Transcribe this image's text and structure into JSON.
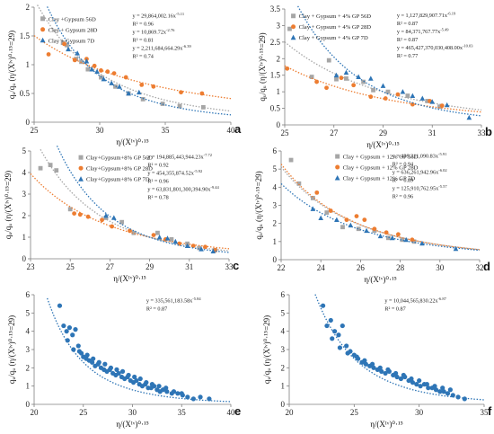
{
  "colors": {
    "grey": "#a6a6a6",
    "orange": "#ed7d31",
    "blue": "#2e75b6",
    "axis": "#7f7f7f",
    "text": "#222222"
  },
  "chart_data": [
    {
      "panel": "a",
      "type": "scatter",
      "xlabel": "η/(Xᴵᵛ)⁰·¹⁵",
      "ylabel": "qᵤ/qᵤ (η/(Xᴵᵛ)⁰·¹⁵=29)",
      "xlim": [
        25,
        40
      ],
      "ylim": [
        0,
        2
      ],
      "xticks": [
        25,
        30,
        35,
        40
      ],
      "yticks": [
        0,
        0.5,
        1,
        1.5,
        2
      ],
      "legend": "top-left",
      "series": [
        {
          "name": "Clay +Gypsum 56D",
          "color": "#a6a6a6",
          "marker": "square",
          "fit": {
            "a": 29864002.16,
            "b": -5.11
          },
          "x": [
            27.2,
            27.5,
            28.2,
            28.6,
            29.1,
            30.1,
            31.2,
            32.2,
            33.3,
            34.8,
            36.1,
            37.9
          ],
          "y": [
            1.38,
            1.34,
            1.1,
            1.05,
            0.92,
            0.78,
            0.62,
            0.5,
            0.4,
            0.32,
            0.28,
            0.26
          ]
        },
        {
          "name": "Clay + Gypsum 28D",
          "color": "#ed7d31",
          "marker": "circle",
          "fit": {
            "a": 10869.72,
            "b": -2.76
          },
          "x": [
            26.1,
            27.3,
            28.1,
            29.0,
            29.6,
            30.1,
            30.6,
            31.1,
            32.0,
            33.2,
            34.1,
            36.2,
            37.8
          ],
          "y": [
            1.18,
            1.36,
            1.08,
            1.1,
            0.98,
            0.9,
            0.88,
            0.85,
            0.78,
            0.65,
            0.62,
            0.52,
            0.5
          ]
        },
        {
          "name": "Clay + Gypsum 7D",
          "color": "#2e75b6",
          "marker": "triangle",
          "fit": {
            "a": 2211684664.29,
            "b": -6.39
          },
          "x": [
            27.6,
            28.3,
            29.0,
            29.4,
            29.8,
            30.3,
            30.9,
            31.5,
            32.2,
            33.0
          ],
          "y": [
            1.27,
            1.2,
            1.06,
            0.92,
            0.88,
            0.75,
            0.68,
            0.62,
            0.5,
            0.52
          ]
        }
      ],
      "equations": [
        [
          "y = 29,864,002.16x",
          "-5.11"
        ],
        [
          "R² = 0.96",
          ""
        ],
        [
          "y = 10,869.72x",
          "-2.76"
        ],
        [
          "R² = 0.81",
          ""
        ],
        [
          "y = 2,211,684,664.29x",
          "-6.39"
        ],
        [
          "R² = 0.74",
          ""
        ]
      ]
    },
    {
      "panel": "b",
      "type": "scatter",
      "xlabel": "η/(Xᴵᵛ)⁰·¹⁵",
      "ylabel": "qᵤ/qᵤ (η/(Xᴵᵛ)⁰·¹⁵=29)",
      "xlim": [
        25,
        33
      ],
      "ylim": [
        0,
        3.5
      ],
      "xticks": [
        25,
        27,
        29,
        31,
        33
      ],
      "yticks": [
        0,
        0.5,
        1,
        1.5,
        2,
        2.5,
        3,
        3.5
      ],
      "legend": "top-left",
      "series": [
        {
          "name": "Clay + Gypsum + 4% GP 56D",
          "color": "#a6a6a6",
          "marker": "square",
          "fit": {
            "a": 1127829907.71,
            "b": -6.19
          },
          "x": [
            25.2,
            26.1,
            26.8,
            27.1,
            27.5,
            28.2,
            28.6,
            29.2,
            30.0,
            30.8,
            31.3
          ],
          "y": [
            2.9,
            1.45,
            1.95,
            1.38,
            1.4,
            1.3,
            1.05,
            1.0,
            0.88,
            0.72,
            0.55
          ]
        },
        {
          "name": "Clay + Gypsum + 4% GP 28D",
          "color": "#ed7d31",
          "marker": "circle",
          "fit": {
            "a": 84371767.77,
            "b": -5.49
          },
          "x": [
            25.1,
            26.3,
            26.7,
            27.3,
            27.8,
            28.5,
            29.1,
            29.6,
            30.2,
            30.9,
            31.4
          ],
          "y": [
            1.7,
            1.3,
            1.12,
            1.42,
            1.2,
            0.85,
            0.8,
            0.92,
            0.62,
            0.72,
            0.58
          ]
        },
        {
          "name": "Clay + Gypsum + 4% GP 7D",
          "color": "#2e75b6",
          "marker": "triangle",
          "fit": {
            "a": 465427370030408,
            "b": -10.03
          },
          "x": [
            27.1,
            27.5,
            28.0,
            28.5,
            29.0,
            29.8,
            30.2,
            30.6,
            31.0,
            31.6,
            32.5
          ],
          "y": [
            1.5,
            1.58,
            1.45,
            1.4,
            1.18,
            1.0,
            0.88,
            0.8,
            0.7,
            0.6,
            0.22
          ]
        }
      ],
      "equations": [
        [
          "y = 1,127,829,907.71x",
          "-6.19"
        ],
        [
          "R² = 0.87",
          ""
        ],
        [
          "y = 84,371,767.77x",
          "-5.49"
        ],
        [
          "R² = 0.87",
          ""
        ],
        [
          "y = 465,427,370,030,408.00x",
          "-10.03"
        ],
        [
          "R² = 0.77",
          ""
        ]
      ]
    },
    {
      "panel": "c",
      "type": "scatter",
      "xlabel": "η/(Xᴵᵛ)⁰·¹⁵",
      "ylabel": "qᵤ/qᵤ (η/(Xᴵᵛ)⁰·¹⁵=29)",
      "xlim": [
        23,
        33
      ],
      "ylim": [
        0,
        5
      ],
      "xticks": [
        23,
        25,
        27,
        29,
        31,
        33
      ],
      "yticks": [
        0,
        1,
        2,
        3,
        4,
        5
      ],
      "legend": "top-center",
      "series": [
        {
          "name": "Clay+Gypsum+8% GP 56D",
          "color": "#a6a6a6",
          "marker": "square",
          "fit": {
            "a": 194885443944.23,
            "b": -7.72
          },
          "x": [
            23.5,
            24.0,
            24.3,
            25.0,
            26.8,
            27.6,
            28.2,
            29.4,
            30.1,
            30.9,
            31.5,
            32.3
          ],
          "y": [
            4.2,
            4.35,
            4.1,
            2.3,
            1.9,
            1.7,
            1.2,
            1.2,
            0.9,
            0.7,
            0.5,
            0.4
          ]
        },
        {
          "name": "Clay+Gypsum+8% GP 28D",
          "color": "#ed7d31",
          "marker": "circle",
          "fit": {
            "a": 454355874.52,
            "b": -5.92
          },
          "x": [
            25.2,
            25.5,
            25.9,
            26.6,
            27.1,
            28.0,
            29.2,
            29.8,
            30.5,
            31.2,
            31.8,
            32.3
          ],
          "y": [
            2.1,
            2.05,
            1.95,
            1.8,
            1.5,
            1.3,
            1.1,
            0.9,
            0.7,
            0.6,
            0.55,
            0.4
          ]
        },
        {
          "name": "Clay+Gypsum+8% GP 7D",
          "color": "#2e75b6",
          "marker": "triangle",
          "fit": {
            "a": 63831801300394.9,
            "b": -9.44
          },
          "x": [
            26.8,
            27.2,
            29.5,
            29.9,
            30.3,
            30.9,
            31.6,
            32.2
          ],
          "y": [
            2.0,
            1.9,
            1.0,
            0.95,
            0.8,
            0.6,
            0.45,
            0.35
          ]
        }
      ],
      "equations": [
        [
          "y = 194,885,443,944.23x",
          "-7.72"
        ],
        [
          "R² = 0.92",
          ""
        ],
        [
          "y = 454,355,874.52x",
          "-5.92"
        ],
        [
          "R² = 0.96",
          ""
        ],
        [
          "y = 63,831,801,300,394.90x",
          "-9.44"
        ],
        [
          "R² = 0.78",
          ""
        ]
      ]
    },
    {
      "panel": "d",
      "type": "scatter",
      "xlabel": "η/(Xᴵᵛ)⁰·¹⁵",
      "ylabel": "qᵤ/qᵤ (η/(Xᴵᵛ)⁰·¹⁵=29)",
      "xlim": [
        22,
        32
      ],
      "ylim": [
        0,
        6
      ],
      "xticks": [
        22,
        24,
        26,
        28,
        30,
        32
      ],
      "yticks": [
        0,
        1,
        2,
        3,
        4,
        5,
        6
      ],
      "legend": "top-center",
      "series": [
        {
          "name": "Clay + Gypsum + 12% GP 56D",
          "color": "#a6a6a6",
          "marker": "square",
          "fit": {
            "a": 439311090.83,
            "b": -5.91
          },
          "x": [
            22.5,
            22.9,
            23.6,
            24.3,
            25.1,
            25.9,
            26.7,
            27.4,
            28.1,
            28.7
          ],
          "y": [
            5.5,
            4.2,
            3.4,
            2.6,
            1.8,
            1.7,
            1.6,
            1.2,
            1.1,
            1.0
          ]
        },
        {
          "name": "Clay + Gypsum + 12% GP 28D",
          "color": "#ed7d31",
          "marker": "circle",
          "fit": {
            "a": 636261942.96,
            "b": -6.02
          },
          "x": [
            23.8,
            24.5,
            25.3,
            25.8,
            26.2,
            26.7,
            27.3,
            27.9,
            28.6
          ],
          "y": [
            3.7,
            2.7,
            2.2,
            2.4,
            2.2,
            1.7,
            1.5,
            1.4,
            1.1
          ]
        },
        {
          "name": "Clay + Gypsum + 12% GP 7D",
          "color": "#2e75b6",
          "marker": "triangle",
          "fit": {
            "a": 125910762.95,
            "b": -5.57
          },
          "x": [
            23.6,
            24.0,
            24.8,
            25.5,
            26.3,
            27.0,
            27.6,
            28.3,
            29.1,
            30.8
          ],
          "y": [
            2.8,
            2.3,
            2.2,
            1.9,
            1.6,
            1.3,
            1.2,
            1.1,
            0.9,
            0.6
          ]
        }
      ],
      "equations": [
        [
          "y = 439,311,090.83x",
          "-5.91"
        ],
        [
          "R² = 0.94",
          ""
        ],
        [
          "y = 636,261,942.96x",
          "-6.02"
        ],
        [
          "R² = 0.89",
          ""
        ],
        [
          "y = 125,910,762.95x",
          "-5.57"
        ],
        [
          "R² = 0.96",
          ""
        ]
      ]
    },
    {
      "panel": "e",
      "type": "scatter",
      "xlabel": "η/(Xᴵᵛ)⁰·¹⁵",
      "ylabel": "qᵤ/qᵤ (η/(Xᴵᵛ)⁰·¹⁵=29)",
      "xlim": [
        20,
        40
      ],
      "ylim": [
        0,
        6
      ],
      "xticks": [
        20,
        25,
        30,
        35,
        40
      ],
      "yticks": [
        0,
        1,
        2,
        3,
        4,
        5,
        6
      ],
      "series": [
        {
          "name": "",
          "color": "#2e75b6",
          "marker": "circle",
          "fit": {
            "a": 335561183.58,
            "b": -5.84
          },
          "x": [
            22.6,
            23.0,
            23.3,
            23.6,
            23.9,
            24.2,
            24.5,
            24.8,
            25.0,
            25.3,
            25.6,
            25.9,
            26.2,
            26.5,
            26.8,
            27.1,
            27.4,
            27.7,
            28.0,
            28.3,
            28.6,
            28.9,
            29.2,
            29.5,
            29.8,
            30.1,
            30.4,
            30.7,
            31.0,
            31.3,
            31.6,
            31.9,
            32.2,
            32.5,
            32.8,
            33.1,
            33.5,
            34.0,
            34.6,
            35.1,
            35.6,
            36.2,
            36.9,
            37.8,
            23.4,
            24.0,
            24.6,
            25.4,
            26.0,
            26.6,
            27.2,
            27.8,
            28.4,
            29.0,
            29.6,
            30.2,
            30.8,
            31.4,
            32.0,
            32.7,
            33.4,
            34.2,
            35.0
          ],
          "y": [
            5.4,
            4.3,
            4.0,
            4.2,
            3.8,
            4.1,
            3.2,
            2.8,
            2.6,
            2.5,
            2.4,
            2.3,
            2.1,
            2.2,
            2.0,
            1.9,
            1.8,
            1.9,
            1.7,
            1.6,
            1.7,
            1.5,
            1.4,
            1.5,
            1.3,
            1.2,
            1.3,
            1.1,
            1.0,
            1.1,
            0.9,
            0.9,
            1.0,
            0.8,
            0.7,
            0.8,
            0.7,
            0.6,
            0.6,
            0.5,
            0.4,
            0.3,
            0.4,
            0.3,
            3.5,
            3.0,
            2.9,
            2.7,
            2.5,
            2.3,
            2.2,
            2.0,
            1.9,
            1.8,
            1.6,
            1.5,
            1.4,
            1.2,
            1.1,
            1.0,
            0.9,
            0.7,
            0.6
          ]
        }
      ],
      "equations": [
        [
          "y = 335,561,183.58x",
          "-5.84"
        ],
        [
          "R² = 0.87",
          ""
        ]
      ]
    },
    {
      "panel": "f",
      "type": "scatter",
      "xlabel": "η/(Xᴵᵛ)⁰·¹⁵",
      "ylabel": "qᵤ/qᵤ (η/(Xᴵᵛ)⁰·¹⁵=29)",
      "xlim": [
        20,
        35
      ],
      "ylim": [
        0,
        6
      ],
      "xticks": [
        20,
        25,
        30,
        35
      ],
      "yticks": [
        0,
        1,
        2,
        3,
        4,
        5,
        6
      ],
      "series": [
        {
          "name": "",
          "color": "#2e75b6",
          "marker": "circle",
          "fit": {
            "a": 10044565830.22,
            "b": -6.87
          },
          "x": [
            22.6,
            22.9,
            23.2,
            23.5,
            23.8,
            24.1,
            24.4,
            24.7,
            25.0,
            25.3,
            25.6,
            25.9,
            26.2,
            26.5,
            26.8,
            27.1,
            27.4,
            27.7,
            28.0,
            28.3,
            28.6,
            28.9,
            29.2,
            29.5,
            29.8,
            30.1,
            30.4,
            30.7,
            31.0,
            31.3,
            31.6,
            31.9,
            32.2,
            32.6,
            33.0,
            33.5,
            23.3,
            23.9,
            24.5,
            25.2,
            25.8,
            26.4,
            27.0,
            27.6,
            28.2,
            28.8,
            29.4,
            30.0,
            30.6,
            31.2,
            31.8,
            32.4
          ],
          "y": [
            5.4,
            4.3,
            4.6,
            4.0,
            3.8,
            4.3,
            3.2,
            2.9,
            2.7,
            2.5,
            2.3,
            2.2,
            2.1,
            2.0,
            1.9,
            1.8,
            1.7,
            1.8,
            1.6,
            1.5,
            1.4,
            1.5,
            1.3,
            1.2,
            1.1,
            1.0,
            1.1,
            0.9,
            0.9,
            0.8,
            0.7,
            0.7,
            0.6,
            0.5,
            0.4,
            0.3,
            3.6,
            3.1,
            2.8,
            2.6,
            2.4,
            2.2,
            2.0,
            1.9,
            1.7,
            1.6,
            1.4,
            1.3,
            1.1,
            1.0,
            0.9,
            0.8
          ]
        }
      ],
      "equations": [
        [
          "y = 10,044,565,830.22x",
          "-6.87"
        ],
        [
          "R² = 0.87",
          ""
        ]
      ]
    }
  ]
}
